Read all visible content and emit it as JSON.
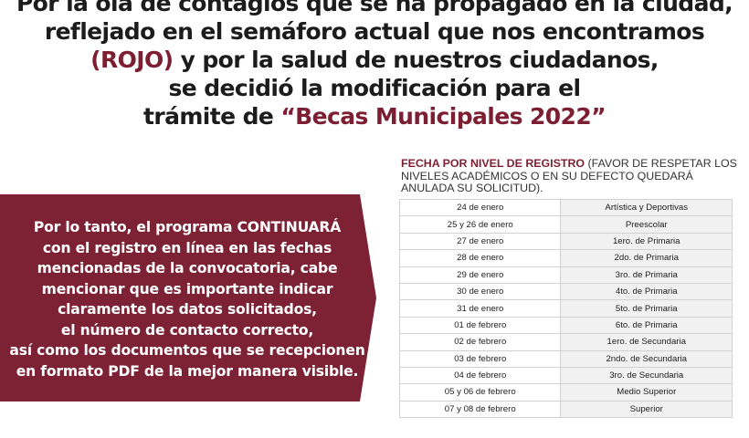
{
  "headline": {
    "line1": "Por la ola de contagios que se ha propagado en la ciudad,",
    "line2": "reflejado en el semáforo actual que nos encontramos",
    "line3_accent": "(ROJO)",
    "line3_rest": " y por la salud de nuestros ciudadanos,",
    "line4": "se decidió la modificación para el",
    "line5_lead": "trámite de ",
    "line5_accent": "“Becas Municipales 2022”"
  },
  "notice": {
    "lines": [
      "Por lo tanto, el programa CONTINUARÁ",
      "con el registro en línea en las fechas",
      "mencionadas de la convocatoria, cabe",
      "mencionar que es importante indicar",
      "claramente los datos solicitados,",
      "el número de contacto correcto,",
      "así como los documentos que se recepcionen",
      "en formato PDF de la mejor manera visible."
    ]
  },
  "schedule": {
    "heading_lead": "FECHA POR NIVEL DE REGISTRO",
    "heading_note": " (FAVOR DE RESPETAR LOS NIVELES ACADÉMICOS O EN SU DEFECTO QUEDARÁ ANULADA SU SOLICITUD).",
    "rows": [
      {
        "date": "24 de enero",
        "level": "Artística y Deportivas"
      },
      {
        "date": "25 y 26 de enero",
        "level": "Preescolar"
      },
      {
        "date": "27 de enero",
        "level": "1ero. de Primaria"
      },
      {
        "date": "28 de enero",
        "level": "2do. de Primaria"
      },
      {
        "date": "29 de enero",
        "level": "3ro. de Primaria"
      },
      {
        "date": "30 de enero",
        "level": "4to. de Primaria"
      },
      {
        "date": "31 de enero",
        "level": "5to. de Primaria"
      },
      {
        "date": "01 de febrero",
        "level": "6to. de Primaria"
      },
      {
        "date": "02 de febrero",
        "level": "1ero. de Secundaria"
      },
      {
        "date": "03 de febrero",
        "level": "2ndo. de Secundaria"
      },
      {
        "date": "04 de febrero",
        "level": "3ro. de Secundaria"
      },
      {
        "date": "05 y 06 de febrero",
        "level": "Medio Superior"
      },
      {
        "date": "07 y 08 de febrero",
        "level": "Superior"
      }
    ]
  },
  "colors": {
    "accent": "#7d1f33",
    "ribbon": "#7d2134",
    "text": "#1c1c1c"
  }
}
